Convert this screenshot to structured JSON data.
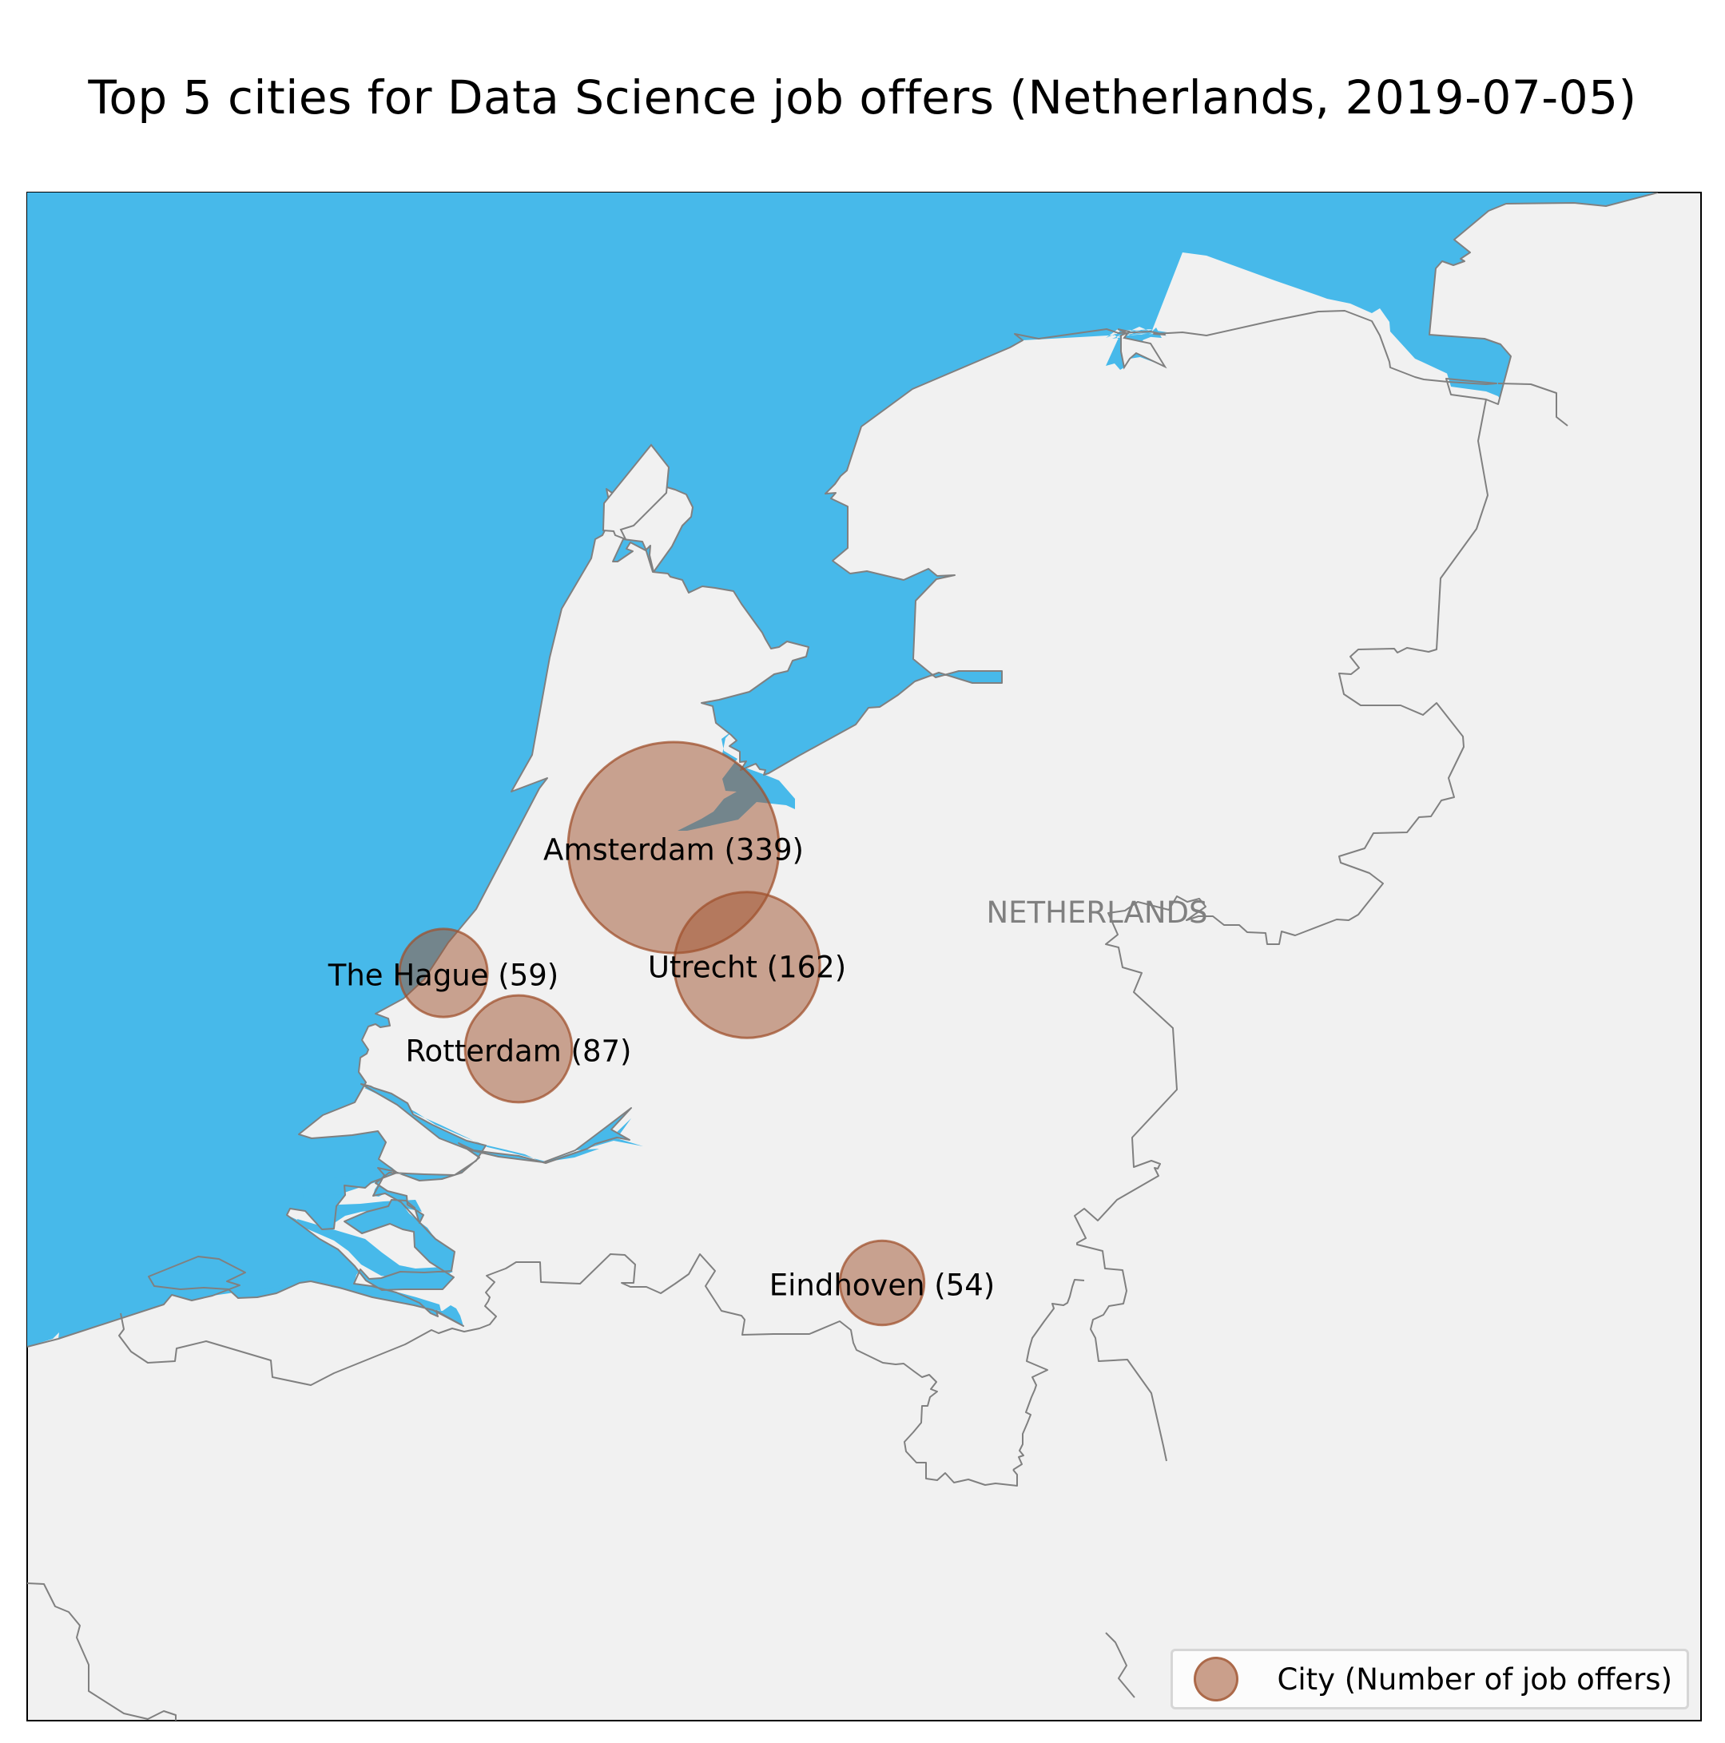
{
  "title": "Top 5 cities for Data Science job offers (Netherlands, 2019-07-05)",
  "colors": {
    "sea": "#47b9ea",
    "land": "#f1f1f1",
    "border": "#808080",
    "marker": "#a0522d",
    "title_text": "#000000",
    "country_text": "#808080"
  },
  "map": {
    "country_label": "NETHERLANDS"
  },
  "cities": [
    {
      "name": "Amsterdam",
      "job_offers": 339,
      "label": "Amsterdam (339)"
    },
    {
      "name": "Utrecht",
      "job_offers": 162,
      "label": "Utrecht (162)"
    },
    {
      "name": "The Hague",
      "job_offers": 59,
      "label": "The Hague (59)"
    },
    {
      "name": "Rotterdam",
      "job_offers": 87,
      "label": "Rotterdam (87)"
    },
    {
      "name": "Eindhoven",
      "job_offers": 54,
      "label": "Eindhoven (54)"
    }
  ],
  "legend": {
    "label": "City (Number of job offers)",
    "marker_icon": "circle-marker-icon"
  }
}
